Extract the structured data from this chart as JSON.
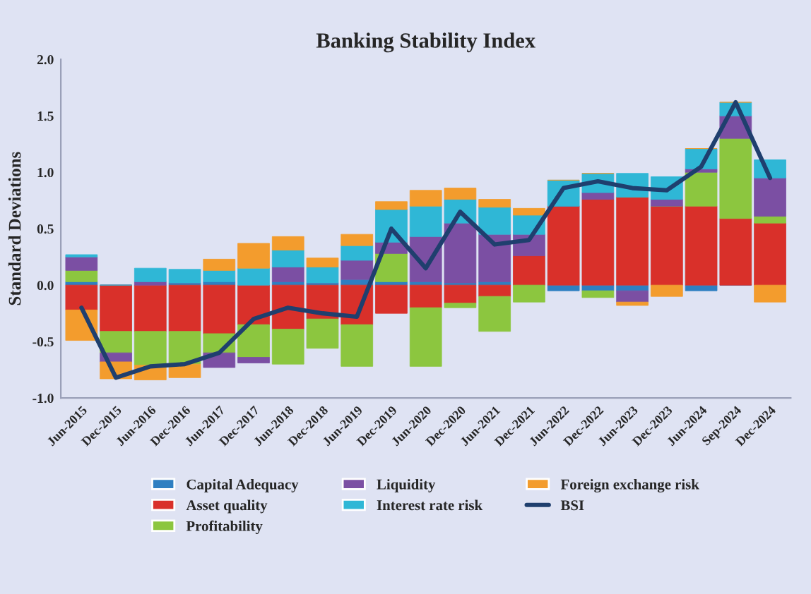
{
  "chart_data": {
    "type": "bar",
    "title": "Banking Stability Index",
    "ylabel": "Standard Deviations",
    "stacked": true,
    "categories": [
      "Jun-2015",
      "Dec-2015",
      "Jun-2016",
      "Dec-2016",
      "Jun-2017",
      "Dec-2017",
      "Jun-2018",
      "Dec-2018",
      "Jun-2019",
      "Dec-2019",
      "Jun-2020",
      "Dec-2020",
      "Jun-2021",
      "Dec-2021",
      "Jun-2022",
      "Dec-2022",
      "Jun-2023",
      "Dec-2023",
      "Jun-2024",
      "Sep-2024",
      "Dec-2024"
    ],
    "series": [
      {
        "name": "Capital Adequacy",
        "color": "#2f7fc1",
        "values": [
          0.03,
          0,
          null,
          0.02,
          0.03,
          null,
          0.03,
          0.02,
          0.05,
          0.03,
          0.03,
          0.02,
          0.03,
          0,
          -0.05,
          -0.05,
          -0.05,
          0,
          -0.05,
          0,
          0
        ]
      },
      {
        "name": "Asset quality",
        "color": "#d9302a",
        "values": [
          -0.22,
          -0.41,
          -0.41,
          -0.41,
          -0.43,
          -0.35,
          -0.39,
          -0.3,
          -0.35,
          -0.25,
          -0.2,
          -0.16,
          -0.1,
          0.26,
          0.7,
          0.76,
          0.78,
          0.7,
          0.7,
          0.59,
          0.55
        ]
      },
      {
        "name": "Profitability",
        "color": "#8cc63f",
        "values": [
          0.1,
          -0.19,
          -0.3,
          -0.29,
          -0.17,
          -0.29,
          -0.31,
          -0.26,
          -0.37,
          0.25,
          -0.52,
          -0.04,
          -0.31,
          -0.15,
          0,
          -0.06,
          0,
          0,
          0.3,
          0.71,
          0.06
        ]
      },
      {
        "name": "Liquidity",
        "color": "#7b4fa3",
        "values": [
          0.12,
          -0.08,
          0.03,
          0,
          -0.13,
          -0.05,
          0.13,
          0,
          0.17,
          0.1,
          0.4,
          0.53,
          0.42,
          0.19,
          0,
          0.06,
          -0.1,
          0.06,
          0.03,
          0.2,
          0.34
        ]
      },
      {
        "name": "Interest rate risk",
        "color": "#2fb7d6",
        "values": [
          0.02,
          0,
          0.12,
          0.12,
          0.1,
          0.15,
          0.15,
          0.14,
          0.13,
          0.29,
          0.27,
          0.21,
          0.24,
          0.17,
          0.23,
          0.17,
          0.21,
          0.2,
          0.18,
          0.12,
          0.16
        ]
      },
      {
        "name": "Foreign exchange risk",
        "color": "#f39c2d",
        "values": [
          -0.27,
          -0.15,
          -0.13,
          -0.12,
          0.1,
          0.22,
          0.12,
          0.08,
          0.1,
          0.07,
          0.14,
          0.1,
          0.07,
          0.06,
          0,
          0,
          -0.03,
          -0.1,
          0,
          0,
          -0.15
        ]
      },
      {
        "name": "BSI",
        "type": "line",
        "color": "#1f3f6e",
        "values": [
          -0.2,
          -0.82,
          -0.72,
          -0.7,
          -0.6,
          -0.3,
          -0.2,
          -0.25,
          -0.28,
          0.5,
          0.15,
          0.65,
          0.36,
          0.4,
          0.86,
          0.92,
          0.86,
          0.84,
          1.05,
          1.62,
          0.95
        ]
      }
    ],
    "ylim": [
      -1.0,
      2.0
    ],
    "yticks": [
      {
        "value": -1.0,
        "label": "-1.0"
      },
      {
        "value": -0.5,
        "label": "-0.5"
      },
      {
        "value": 0.0,
        "label": "0.0"
      },
      {
        "value": 0.5,
        "label": "0.5"
      },
      {
        "value": 1.0,
        "label": "1.0"
      },
      {
        "value": 1.5,
        "label": "1.5"
      },
      {
        "value": 2.0,
        "label": "2.0"
      }
    ],
    "grid": false,
    "legend": "bottom"
  }
}
